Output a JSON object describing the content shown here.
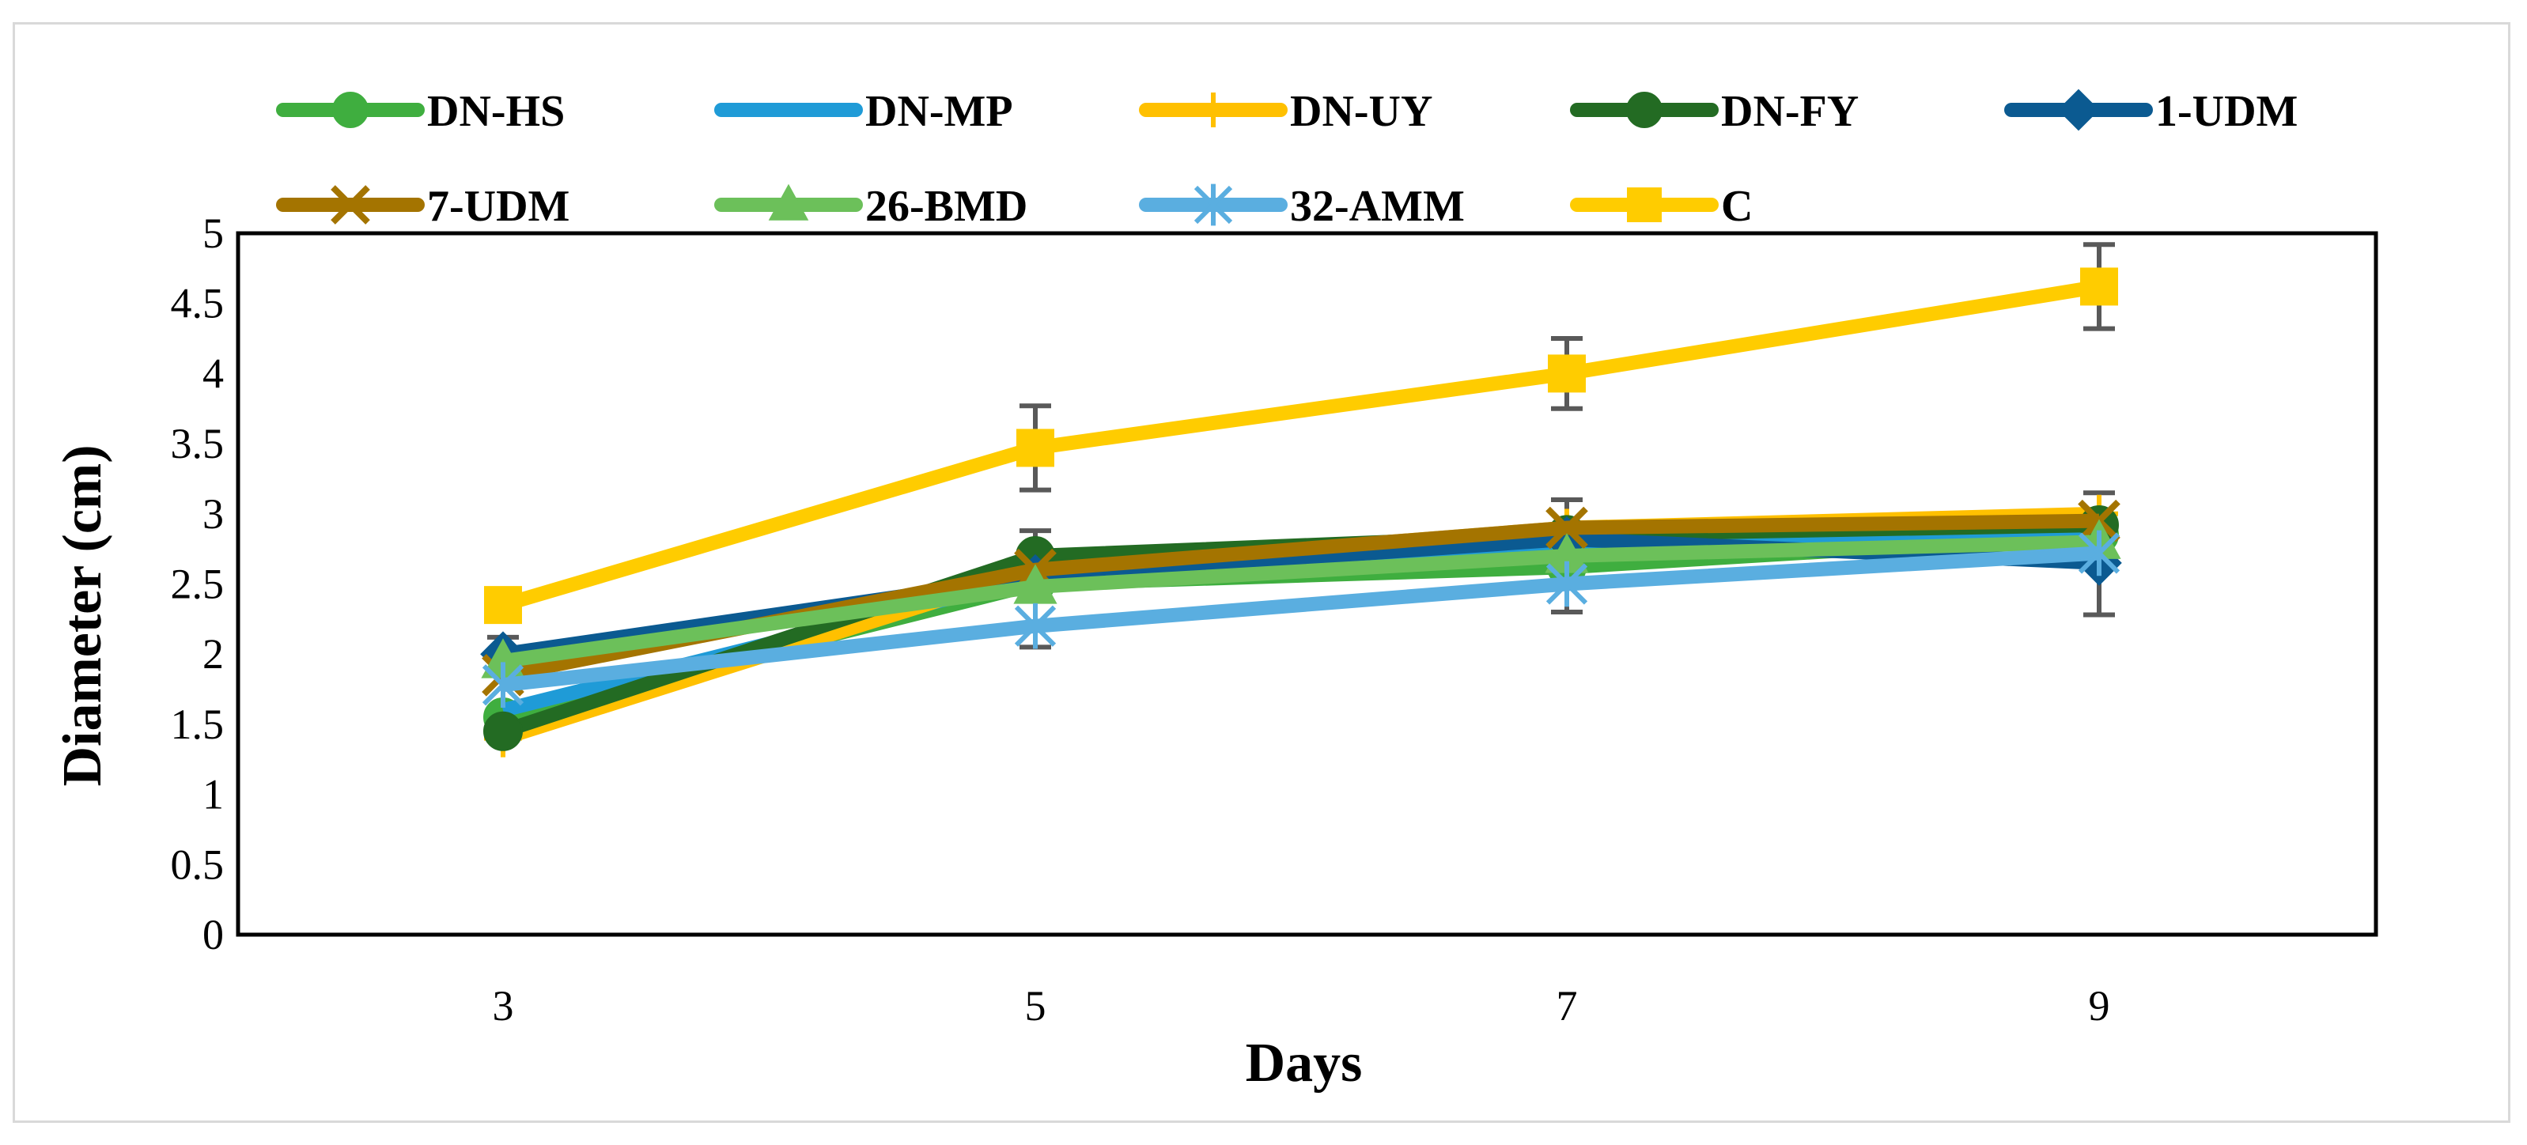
{
  "chart_data": {
    "type": "line",
    "title": "",
    "xlabel": "Days",
    "ylabel": "Diameter (cm)",
    "x": [
      "3",
      "5",
      "7",
      "9"
    ],
    "ylim": [
      0,
      5
    ],
    "yticks": [
      "0",
      "0.5",
      "1",
      "1.5",
      "2",
      "2.5",
      "3",
      "3.5",
      "4",
      "4.5",
      "5"
    ],
    "grid": false,
    "legend_position": "top",
    "series": [
      {
        "name": "DN-HS",
        "color": "#3fae3f",
        "marker": "circle",
        "values": [
          1.55,
          2.5,
          2.62,
          2.85
        ]
      },
      {
        "name": "DN-MP",
        "color": "#1f9bd7",
        "marker": "none",
        "values": [
          1.6,
          2.55,
          2.8,
          2.85
        ]
      },
      {
        "name": "DN-UY",
        "color": "#ffc000",
        "marker": "plus",
        "values": [
          1.4,
          2.6,
          2.9,
          3.0
        ]
      },
      {
        "name": "DN-FY",
        "color": "#236b23",
        "marker": "circle",
        "values": [
          1.45,
          2.7,
          2.85,
          2.92
        ]
      },
      {
        "name": "1-UDM",
        "color": "#0b5a91",
        "marker": "diamond",
        "values": [
          2.0,
          2.55,
          2.82,
          2.65
        ]
      },
      {
        "name": "7-UDM",
        "color": "#a47400",
        "marker": "x",
        "values": [
          1.85,
          2.6,
          2.9,
          2.95
        ]
      },
      {
        "name": "26-BMD",
        "color": "#6cc05a",
        "marker": "triangle",
        "values": [
          1.95,
          2.48,
          2.7,
          2.8
        ]
      },
      {
        "name": "32-AMM",
        "color": "#5aaee0",
        "marker": "asterisk",
        "values": [
          1.78,
          2.2,
          2.5,
          2.72
        ]
      },
      {
        "name": "C",
        "color": "#ffcc00",
        "marker": "square",
        "values": [
          2.35,
          3.47,
          4.0,
          4.62
        ],
        "error": [
          0.05,
          0.3,
          0.25,
          0.3
        ]
      }
    ],
    "error_bars": [
      {
        "x": "3",
        "low": 1.85,
        "high": 2.12
      },
      {
        "x": "5",
        "low": 2.05,
        "high": 2.88
      },
      {
        "x": "7",
        "low": 2.3,
        "high": 3.1
      },
      {
        "x": "9",
        "low": 2.28,
        "high": 3.15
      }
    ]
  }
}
